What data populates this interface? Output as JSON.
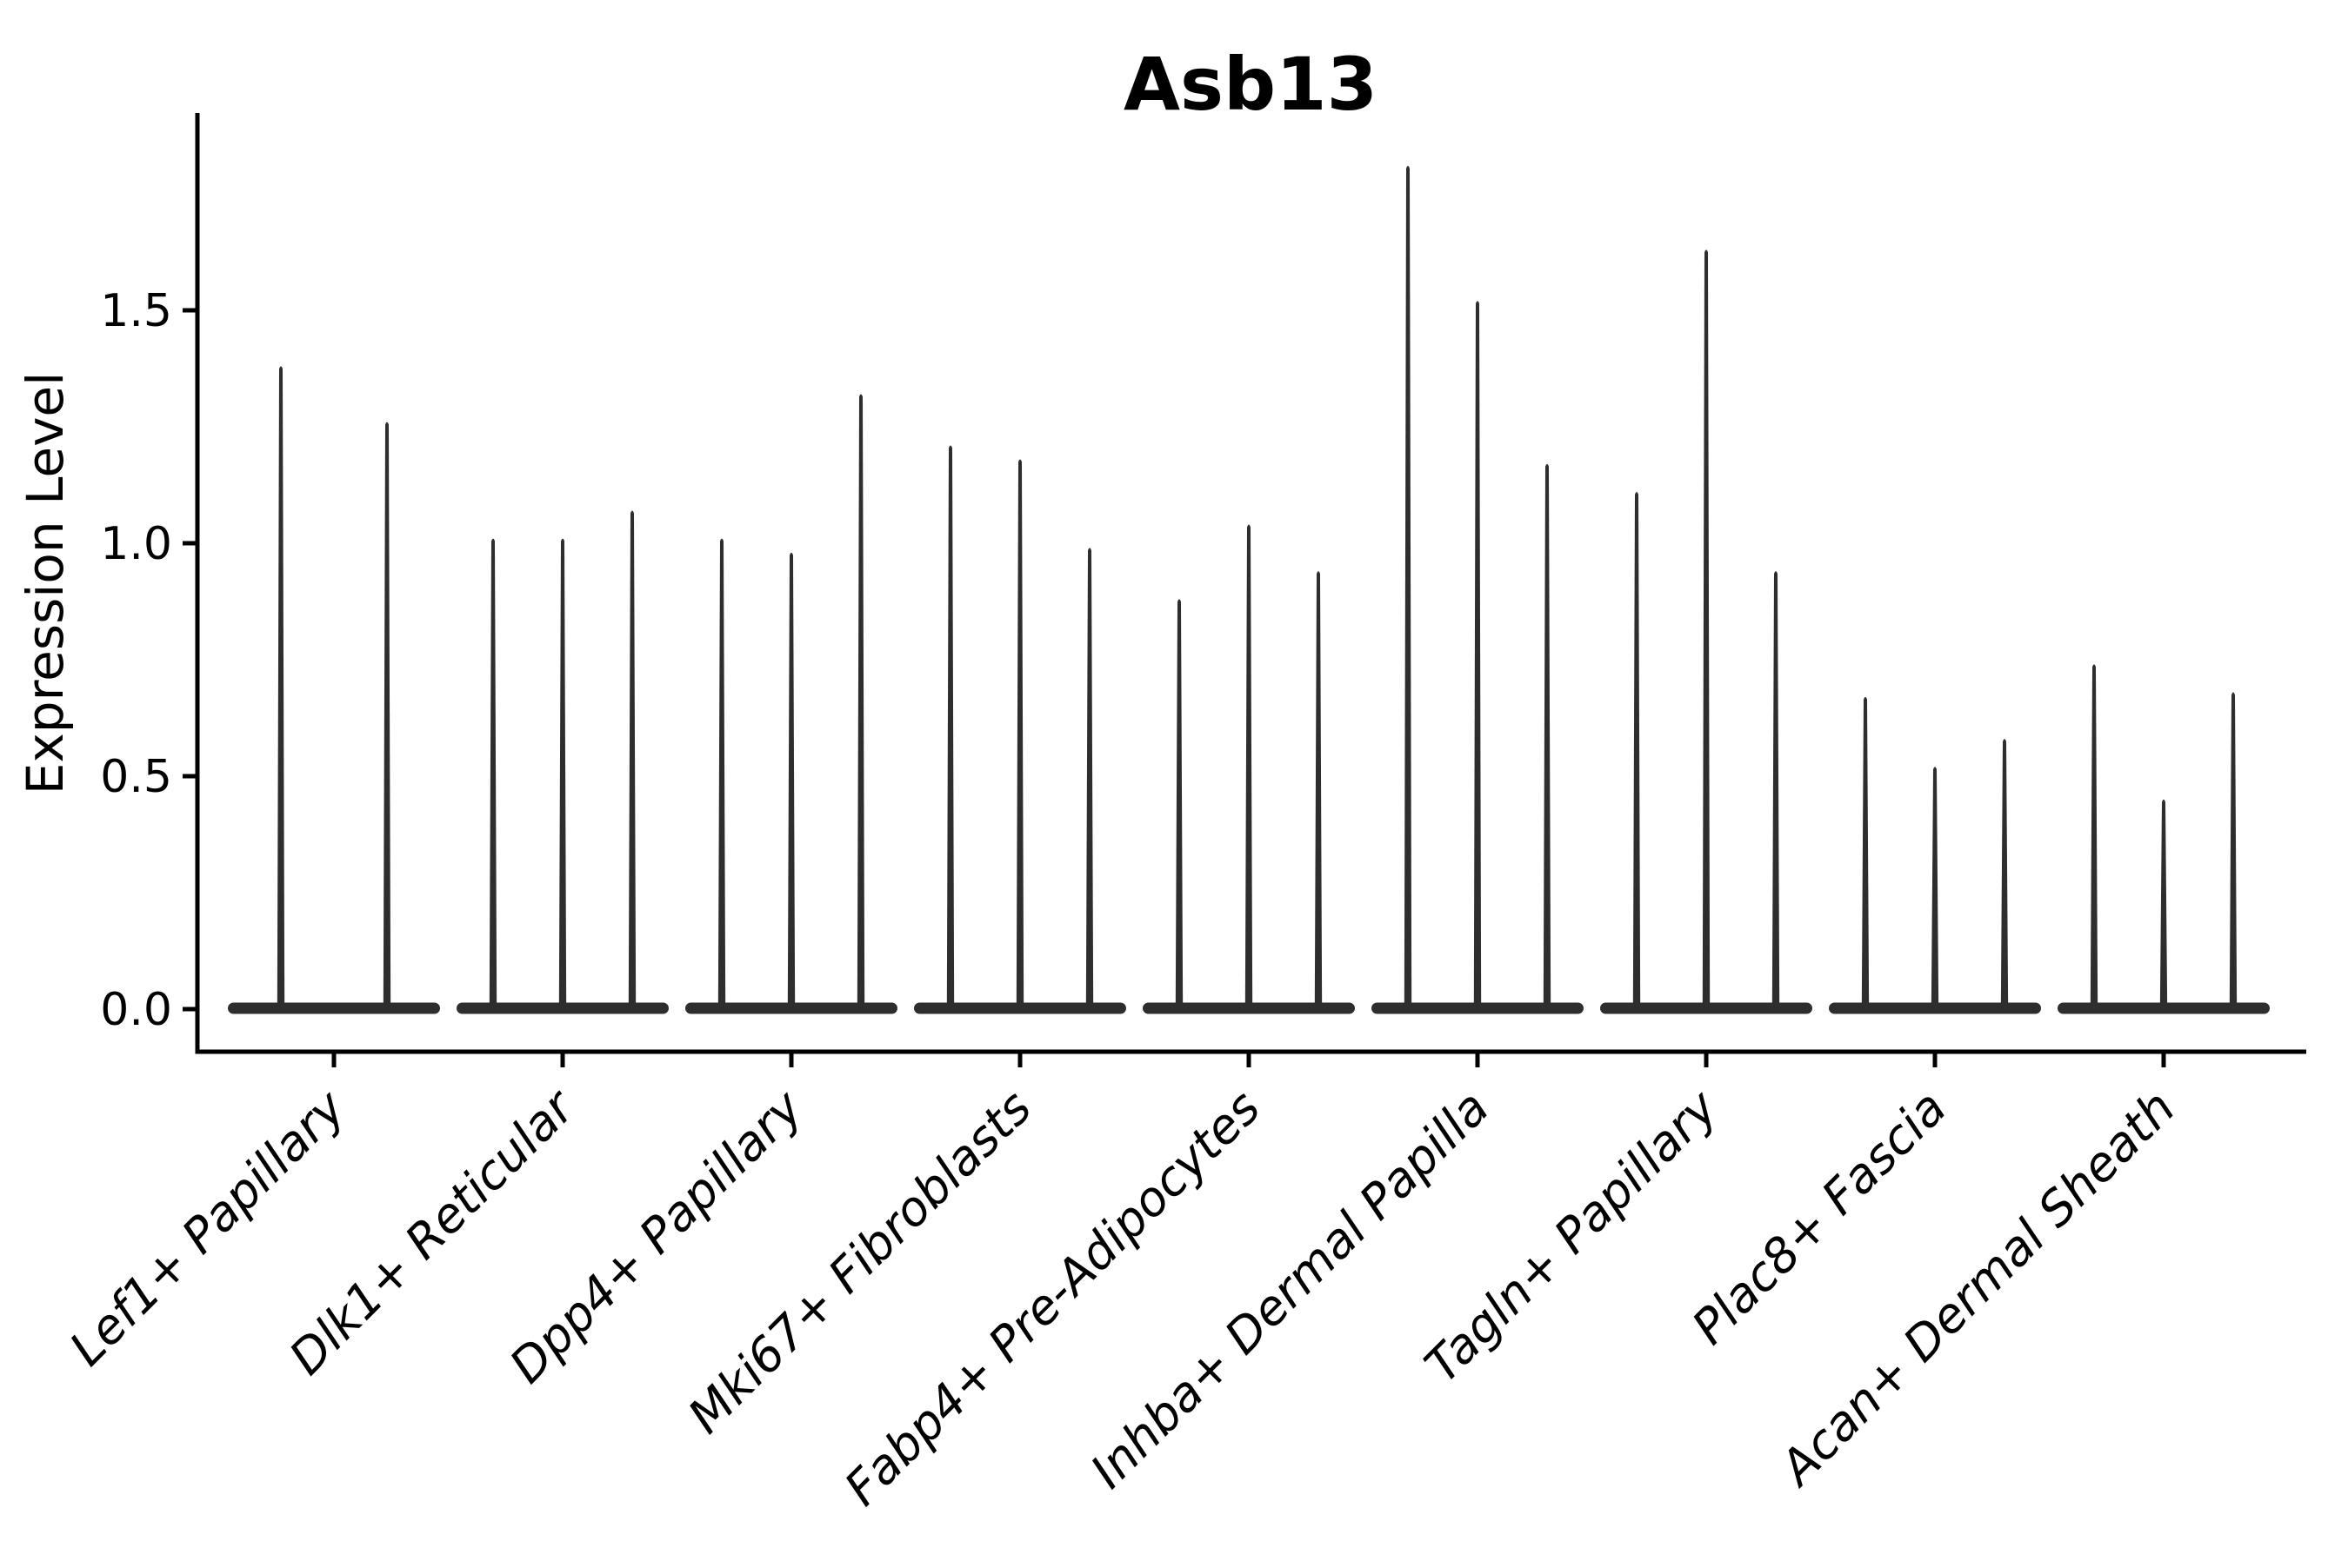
{
  "chart_data": {
    "type": "violin",
    "title": "Asb13",
    "xlabel": "",
    "ylabel": "Expression Level",
    "ytick_labels": [
      "0.0",
      "0.5",
      "1.0",
      "1.5"
    ],
    "ytick_values": [
      0,
      0.5,
      1.0,
      1.5
    ],
    "ylim": [
      -0.09,
      1.92
    ],
    "grid": false,
    "legend": "none",
    "xtick_rotation_deg": 45,
    "style": {
      "violin_color": "#2e2e2e",
      "axis_color": "#000000",
      "text_color": "#000000",
      "background": "#ffffff"
    },
    "categories": [
      "Lef1+ Papillary",
      "Dlk1+ Reticular",
      "Dpp4+ Papillary",
      "Mki67+ Fibroblasts",
      "Fabp4+ Pre-Adipocytes",
      "Inhba+ Dermal Papilla",
      "Tagln+ Papillary",
      "Plac8+ Fascia",
      "Acan+ Dermal Sheath"
    ],
    "groups": [
      {
        "category": "Lef1+ Papillary",
        "spike_maxima": [
          1.38,
          1.26
        ]
      },
      {
        "category": "Dlk1+ Reticular",
        "spike_maxima": [
          1.01,
          1.01,
          1.07
        ]
      },
      {
        "category": "Dpp4+ Papillary",
        "spike_maxima": [
          1.01,
          0.98,
          1.32
        ]
      },
      {
        "category": "Mki67+ Fibroblasts",
        "spike_maxima": [
          1.21,
          1.18,
          0.99
        ]
      },
      {
        "category": "Fabp4+ Pre-Adipocytes",
        "spike_maxima": [
          0.88,
          1.04,
          0.94
        ]
      },
      {
        "category": "Inhba+ Dermal Papilla",
        "spike_maxima": [
          1.81,
          1.52,
          1.17
        ]
      },
      {
        "category": "Tagln+ Papillary",
        "spike_maxima": [
          1.11,
          1.63,
          0.94
        ]
      },
      {
        "category": "Plac8+ Fascia",
        "spike_maxima": [
          0.67,
          0.52,
          0.58
        ]
      },
      {
        "category": "Acan+ Dermal Sheath",
        "spike_maxima": [
          0.74,
          0.45,
          0.68
        ]
      }
    ],
    "note": "Each violin is collapsed to a flat bar at expression 0 with a thin spike rising to that violin's maximum expression value."
  }
}
